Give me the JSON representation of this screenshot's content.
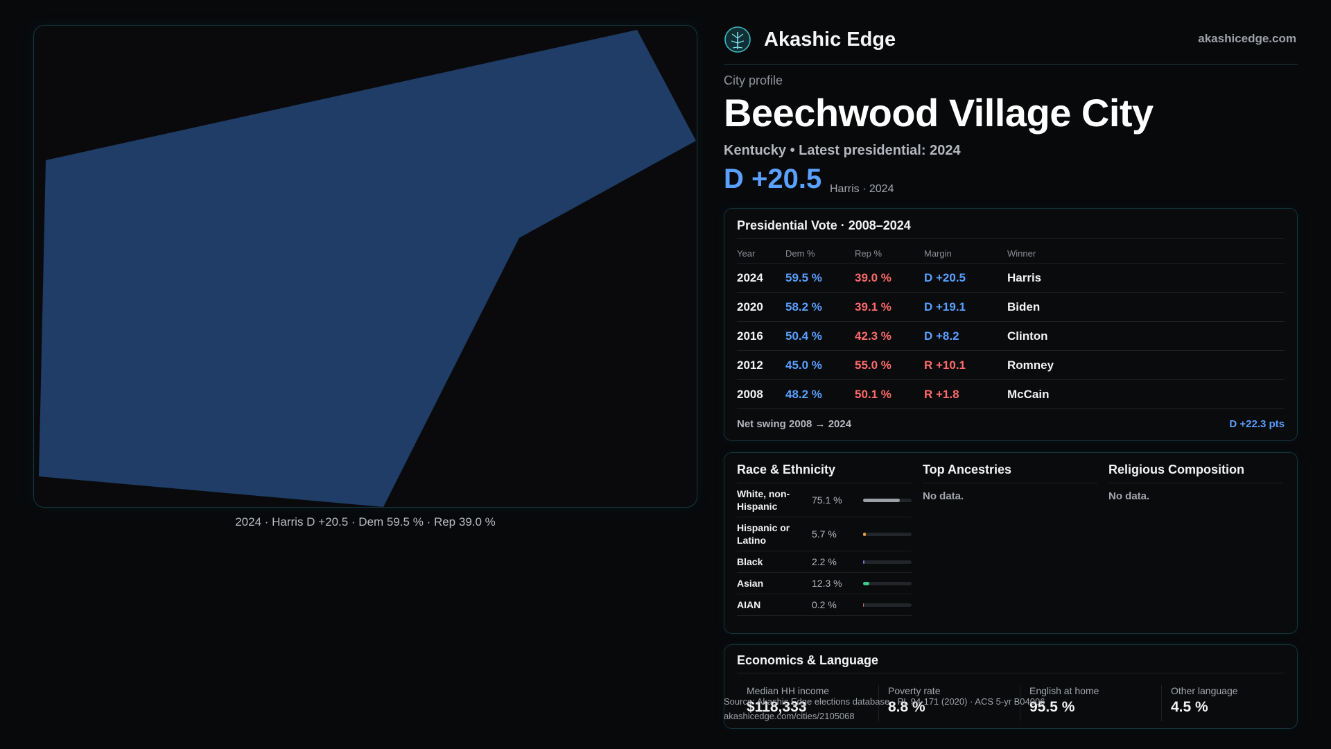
{
  "brand": {
    "name": "Akashic Edge",
    "url": "akashicedge.com",
    "logo_icon": "atom-tree-logo-icon"
  },
  "map": {
    "caption": "2024 · Harris D +20.5 · Dem 59.5 % · Rep 39.0 %",
    "fill_color": "#1f3d66"
  },
  "profile": {
    "eyebrow": "City profile",
    "title": "Beechwood Village City",
    "subtitle": "Kentucky • Latest presidential: 2024",
    "margin": "D +20.5",
    "margin_note": "Harris · 2024"
  },
  "presidential": {
    "title": "Presidential Vote · 2008–2024",
    "columns": [
      "Year",
      "Dem %",
      "Rep %",
      "Margin",
      "Winner"
    ],
    "rows": [
      {
        "year": "2024",
        "dem": "59.5 %",
        "rep": "39.0 %",
        "margin": "D +20.5",
        "party": "dem",
        "winner": "Harris"
      },
      {
        "year": "2020",
        "dem": "58.2 %",
        "rep": "39.1 %",
        "margin": "D +19.1",
        "party": "dem",
        "winner": "Biden"
      },
      {
        "year": "2016",
        "dem": "50.4 %",
        "rep": "42.3 %",
        "margin": "D +8.2",
        "party": "dem",
        "winner": "Clinton"
      },
      {
        "year": "2012",
        "dem": "45.0 %",
        "rep": "55.0 %",
        "margin": "R +10.1",
        "party": "rep",
        "winner": "Romney"
      },
      {
        "year": "2008",
        "dem": "48.2 %",
        "rep": "50.1 %",
        "margin": "R +1.8",
        "party": "rep",
        "winner": "McCain"
      }
    ],
    "swing_label": "Net swing 2008 → 2024",
    "swing_value": "D +22.3 pts"
  },
  "race": {
    "title": "Race & Ethnicity",
    "rows": [
      {
        "name": "White, non-Hispanic",
        "pct": "75.1 %",
        "value": 75.1,
        "color": "#9aa0a8"
      },
      {
        "name": "Hispanic or Latino",
        "pct": "5.7 %",
        "value": 5.7,
        "color": "#e89a3c"
      },
      {
        "name": "Black",
        "pct": "2.2 %",
        "value": 2.2,
        "color": "#8a6cd0"
      },
      {
        "name": "Asian",
        "pct": "12.3 %",
        "value": 12.3,
        "color": "#3cc98a"
      },
      {
        "name": "AIAN",
        "pct": "0.2 %",
        "value": 0.2,
        "color": "#c96b6b"
      }
    ]
  },
  "ancestries": {
    "title": "Top Ancestries",
    "empty": "No data."
  },
  "religion": {
    "title": "Religious Composition",
    "empty": "No data."
  },
  "economics": {
    "title": "Economics & Language",
    "stats": [
      {
        "label": "Median HH income",
        "value": "$118,333"
      },
      {
        "label": "Poverty rate",
        "value": "8.8 %"
      },
      {
        "label": "English at home",
        "value": "95.5 %"
      },
      {
        "label": "Other language",
        "value": "4.5 %"
      }
    ]
  },
  "footer": {
    "source": "Source: Akashic Edge elections database · PL 94-171 (2020) · ACS 5-yr B04006",
    "url": "akashicedge.com/cities/2105068"
  }
}
